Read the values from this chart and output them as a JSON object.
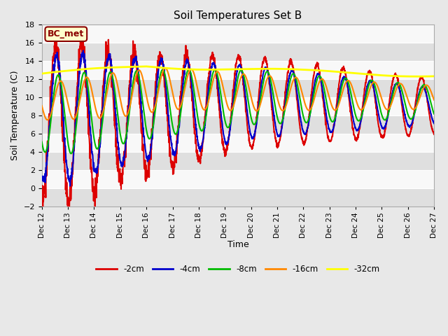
{
  "title": "Soil Temperatures Set B",
  "xlabel": "Time",
  "ylabel": "Soil Temperature (C)",
  "ylim": [
    -2,
    18
  ],
  "xlim": [
    0,
    360
  ],
  "fig_bg_color": "#e8e8e8",
  "plot_bg_color": "#e8e8e8",
  "grid_color": "#ffffff",
  "label_box_text": "BC_met",
  "label_box_facecolor": "#ffffcc",
  "label_box_edgecolor": "#8b0000",
  "series_colors": {
    "-2cm": "#dd0000",
    "-4cm": "#0000cc",
    "-8cm": "#00bb00",
    "-16cm": "#ff8800",
    "-32cm": "#ffff00"
  },
  "series_linewidths": {
    "-2cm": 1.5,
    "-4cm": 1.5,
    "-8cm": 1.5,
    "-16cm": 1.5,
    "-32cm": 2.0
  },
  "xtick_labels": [
    "Dec 12",
    "Dec 13",
    "Dec 14",
    "Dec 15",
    "Dec 16",
    "Dec 17",
    "Dec 18",
    "Dec 19",
    "Dec 20",
    "Dec 21",
    "Dec 22",
    "Dec 23",
    "Dec 24",
    "Dec 25",
    "Dec 26",
    "Dec 27"
  ],
  "xtick_positions": [
    0,
    24,
    48,
    72,
    96,
    120,
    144,
    168,
    192,
    216,
    240,
    264,
    288,
    312,
    336,
    360
  ],
  "ytick_positions": [
    -2,
    0,
    2,
    4,
    6,
    8,
    10,
    12,
    14,
    16,
    18
  ],
  "legend_entries": [
    "-2cm",
    "-4cm",
    "-8cm",
    "-16cm",
    "-32cm"
  ]
}
